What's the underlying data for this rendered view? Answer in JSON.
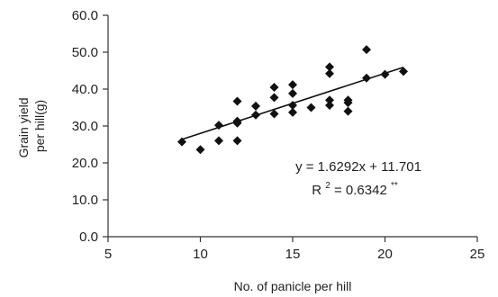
{
  "chart_data": {
    "type": "scatter",
    "xlabel": "No. of panicle per hill",
    "ylabel_lines": [
      "Grain yield",
      "per hill(g)"
    ],
    "xlim": [
      5,
      25
    ],
    "ylim": [
      0,
      60
    ],
    "x_ticks": [
      5,
      10,
      15,
      20,
      25
    ],
    "y_ticks": [
      0,
      10,
      20,
      30,
      40,
      50,
      60
    ],
    "x_tick_labels": [
      "5",
      "10",
      "15",
      "20",
      "25"
    ],
    "y_tick_labels": [
      "0.0",
      "10.0",
      "20.0",
      "30.0",
      "40.0",
      "50.0",
      "60.0"
    ],
    "grid": false,
    "marker": "diamond",
    "marker_color": "#111111",
    "points": [
      {
        "x": 9,
        "y": 25.7
      },
      {
        "x": 10,
        "y": 23.6
      },
      {
        "x": 11,
        "y": 30.2
      },
      {
        "x": 11,
        "y": 26.0
      },
      {
        "x": 12,
        "y": 36.7
      },
      {
        "x": 12,
        "y": 31.3
      },
      {
        "x": 12,
        "y": 30.8
      },
      {
        "x": 12,
        "y": 26.0
      },
      {
        "x": 13,
        "y": 35.4
      },
      {
        "x": 13,
        "y": 33.0
      },
      {
        "x": 14,
        "y": 40.5
      },
      {
        "x": 14,
        "y": 37.7
      },
      {
        "x": 14,
        "y": 33.3
      },
      {
        "x": 15,
        "y": 41.2
      },
      {
        "x": 15,
        "y": 38.8
      },
      {
        "x": 15,
        "y": 35.6
      },
      {
        "x": 15,
        "y": 33.7
      },
      {
        "x": 16,
        "y": 35.0
      },
      {
        "x": 17,
        "y": 46.0
      },
      {
        "x": 17,
        "y": 44.2
      },
      {
        "x": 17,
        "y": 37.0
      },
      {
        "x": 17,
        "y": 35.6
      },
      {
        "x": 18,
        "y": 37.0
      },
      {
        "x": 18,
        "y": 36.3
      },
      {
        "x": 18,
        "y": 34.0
      },
      {
        "x": 19,
        "y": 50.7
      },
      {
        "x": 19,
        "y": 43.0
      },
      {
        "x": 20,
        "y": 44.0
      },
      {
        "x": 21,
        "y": 44.8
      }
    ],
    "trendline": {
      "slope": 1.6292,
      "intercept": 11.701,
      "x_start": 9,
      "x_end": 21,
      "color": "#111111"
    },
    "annotations": {
      "equation": "y = 1.6292x + 11.701",
      "r2_prefix": "R",
      "r2_sup": "2",
      "r2_value": " = 0.6342",
      "r2_sig": "**"
    }
  }
}
